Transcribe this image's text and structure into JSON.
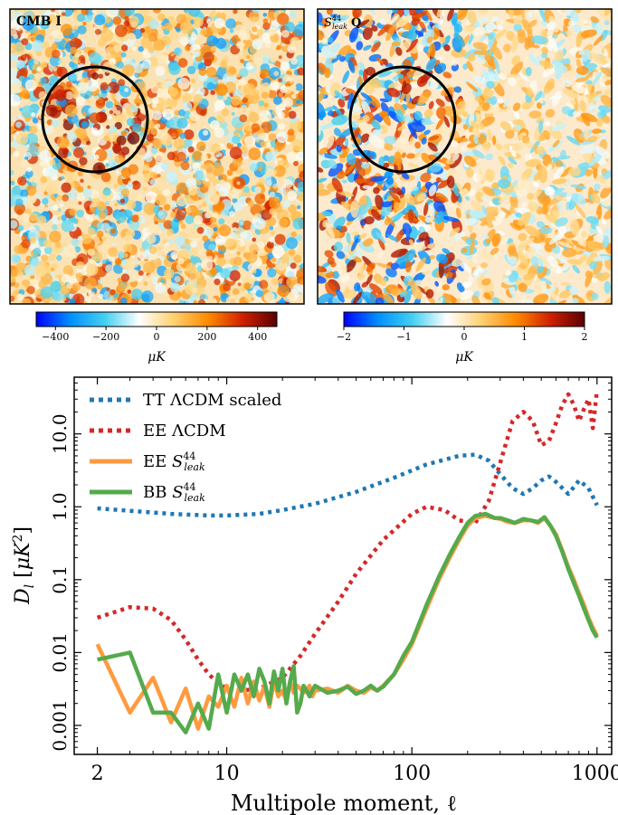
{
  "maps": [
    {
      "label": "CMB I",
      "colorbar_ticks": [
        "−400",
        "−200",
        "0",
        "200",
        "400"
      ],
      "colorbar_unit": "μK",
      "colormap": [
        "#0000ff",
        "#0090ff",
        "#44d0f0",
        "#ffffff",
        "#ffd070",
        "#ff8a00",
        "#d02000",
        "#5a0000"
      ],
      "circle": true
    },
    {
      "label_S": "S",
      "label_sup": "44",
      "label_sub": "leak",
      "label_suffix": "Q",
      "colorbar_ticks": [
        "−2",
        "−1",
        "0",
        "1",
        "2"
      ],
      "colorbar_unit": "μK",
      "colormap": [
        "#0000ff",
        "#0090ff",
        "#44d0f0",
        "#ffffff",
        "#ffd070",
        "#ff8a00",
        "#d02000",
        "#5a0000"
      ],
      "circle": true
    }
  ],
  "chart_data": {
    "type": "line",
    "xscale": "log",
    "yscale": "log",
    "xlim": [
      1.5,
      1200
    ],
    "ylim": [
      0.0004,
      60
    ],
    "xlabel": "Multipole moment, ℓ",
    "ylabel": "D_l [μK^2]",
    "xticks": [
      {
        "v": 2,
        "label": "2"
      },
      {
        "v": 10,
        "label": "10"
      },
      {
        "v": 100,
        "label": "100"
      },
      {
        "v": 1000,
        "label": "1000"
      }
    ],
    "yticks": [
      {
        "v": 0.001,
        "label": "0.001"
      },
      {
        "v": 0.01,
        "label": "0.01"
      },
      {
        "v": 0.1,
        "label": "0.1"
      },
      {
        "v": 1,
        "label": "1.0"
      },
      {
        "v": 10,
        "label": "10.0"
      }
    ],
    "legend_location": "upper-left",
    "series": [
      {
        "name": "TT ΛCDM scaled",
        "color": "#1f77b4",
        "style": "dotted",
        "x": [
          2,
          3,
          5,
          8,
          10,
          15,
          20,
          30,
          50,
          80,
          120,
          180,
          220,
          260,
          300,
          350,
          400,
          450,
          500,
          550,
          600,
          700,
          800,
          900,
          1000
        ],
        "y": [
          0.95,
          0.88,
          0.8,
          0.76,
          0.76,
          0.8,
          0.9,
          1.1,
          1.6,
          2.5,
          3.8,
          5.0,
          5.2,
          4.3,
          2.8,
          1.8,
          1.5,
          1.8,
          2.3,
          2.6,
          2.2,
          1.5,
          2.3,
          1.8,
          1.05
        ]
      },
      {
        "name": "EE ΛCDM",
        "color": "#d62728",
        "style": "dotted",
        "x": [
          2,
          3,
          4,
          5,
          6,
          7,
          8,
          9,
          10,
          12,
          15,
          20,
          25,
          30,
          40,
          50,
          70,
          100,
          120,
          150,
          180,
          220,
          260,
          300,
          350,
          400,
          450,
          500,
          550,
          600,
          650,
          700,
          750,
          800,
          850,
          900,
          950,
          1000
        ],
        "y": [
          0.03,
          0.042,
          0.04,
          0.028,
          0.015,
          0.008,
          0.005,
          0.0038,
          0.0032,
          0.003,
          0.0032,
          0.0045,
          0.009,
          0.018,
          0.05,
          0.12,
          0.35,
          0.8,
          1.0,
          0.9,
          0.65,
          0.6,
          1.2,
          4.0,
          15,
          20,
          15,
          7,
          8,
          14,
          25,
          35,
          25,
          15,
          22,
          30,
          12,
          40
        ]
      },
      {
        "name_prefix": "EE ",
        "name_S": "S",
        "name_sup": "44",
        "name_sub": "leak",
        "color": "#ff9a40",
        "style": "solid",
        "x": [
          2,
          3,
          4,
          5,
          6,
          7,
          8,
          9,
          10,
          11,
          12,
          13,
          14,
          15,
          16,
          17,
          18,
          19,
          20,
          21,
          22,
          23,
          24,
          25,
          26,
          27,
          28,
          29,
          30,
          35,
          40,
          45,
          50,
          55,
          60,
          65,
          70,
          80,
          90,
          100,
          120,
          140,
          160,
          180,
          200,
          220,
          250,
          280,
          300,
          330,
          360,
          400,
          440,
          480,
          520,
          560,
          600,
          650,
          700,
          750,
          800,
          850,
          900,
          950,
          1000
        ],
        "y": [
          0.013,
          0.0015,
          0.0045,
          0.0011,
          0.0032,
          0.0009,
          0.0025,
          0.0018,
          0.0035,
          0.0018,
          0.0045,
          0.002,
          0.004,
          0.0022,
          0.0035,
          0.0018,
          0.004,
          0.0025,
          0.003,
          0.0022,
          0.004,
          0.0028,
          0.0035,
          0.0032,
          0.0028,
          0.003,
          0.0035,
          0.0025,
          0.003,
          0.0032,
          0.0028,
          0.0035,
          0.003,
          0.0028,
          0.0033,
          0.003,
          0.0035,
          0.005,
          0.008,
          0.013,
          0.04,
          0.1,
          0.2,
          0.35,
          0.55,
          0.7,
          0.75,
          0.7,
          0.68,
          0.62,
          0.6,
          0.65,
          0.65,
          0.6,
          0.7,
          0.55,
          0.42,
          0.25,
          0.15,
          0.1,
          0.065,
          0.045,
          0.03,
          0.022,
          0.017
        ]
      },
      {
        "name_prefix": "BB ",
        "name_S": "S",
        "name_sup": "44",
        "name_sub": "leak",
        "color": "#55aa4c",
        "style": "solid",
        "x": [
          2,
          3,
          4,
          5,
          6,
          7,
          8,
          9,
          10,
          11,
          12,
          13,
          14,
          15,
          16,
          17,
          18,
          19,
          20,
          21,
          22,
          23,
          24,
          25,
          26,
          27,
          28,
          29,
          30,
          35,
          40,
          45,
          50,
          55,
          60,
          65,
          70,
          80,
          90,
          100,
          120,
          140,
          160,
          180,
          200,
          220,
          250,
          280,
          300,
          330,
          360,
          400,
          440,
          480,
          520,
          560,
          600,
          650,
          700,
          750,
          800,
          850,
          900,
          950,
          1000
        ],
        "y": [
          0.008,
          0.01,
          0.0015,
          0.0015,
          0.0008,
          0.002,
          0.0009,
          0.005,
          0.0015,
          0.005,
          0.003,
          0.005,
          0.0025,
          0.006,
          0.004,
          0.002,
          0.0055,
          0.003,
          0.006,
          0.002,
          0.004,
          0.0065,
          0.0015,
          0.002,
          0.0035,
          0.003,
          0.0025,
          0.003,
          0.0035,
          0.0028,
          0.003,
          0.0034,
          0.0027,
          0.003,
          0.0035,
          0.003,
          0.0034,
          0.005,
          0.009,
          0.014,
          0.045,
          0.11,
          0.22,
          0.38,
          0.6,
          0.75,
          0.8,
          0.7,
          0.7,
          0.65,
          0.6,
          0.68,
          0.65,
          0.62,
          0.72,
          0.55,
          0.4,
          0.24,
          0.14,
          0.09,
          0.06,
          0.04,
          0.028,
          0.02,
          0.016
        ]
      }
    ]
  }
}
